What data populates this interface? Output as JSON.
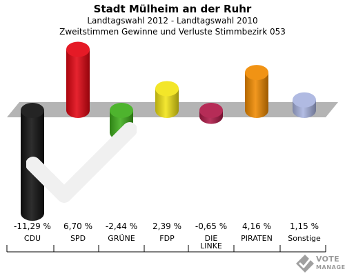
{
  "header": {
    "title": "Stadt Mülheim an der Ruhr",
    "subtitle": "Landtagswahl 2012 - Landtagswahl 2010",
    "subtitle2": "Zweitstimmen Gewinne und Verluste Stimmbezirk 053"
  },
  "logo": {
    "line1": "VOTE",
    "line2": "MANAGER"
  },
  "chart_data": {
    "type": "bar",
    "title": "Stadt Mülheim an der Ruhr",
    "subtitle": "Landtagswahl 2012 - Landtagswahl 2010 / Zweitstimmen Gewinne und Verluste Stimmbezirk 053",
    "categories": [
      "CDU",
      "SPD",
      "GRÜNE",
      "FDP",
      "DIE LINKE",
      "PIRATEN",
      "Sonstige"
    ],
    "category_labels": [
      [
        "CDU"
      ],
      [
        "SPD"
      ],
      [
        "GRÜNE"
      ],
      [
        "FDP"
      ],
      [
        "DIE",
        "LINKE"
      ],
      [
        "PIRATEN"
      ],
      [
        "Sonstige"
      ]
    ],
    "values": [
      -11.29,
      6.7,
      -2.44,
      2.39,
      -0.65,
      4.16,
      1.15
    ],
    "value_labels": [
      "-11,29 %",
      "6,70 %",
      "-2,44 %",
      "2,39 %",
      "-0,65 %",
      "4,16 %",
      "1,15 %"
    ],
    "colors": [
      "#111111",
      "#e30613",
      "#3fae1c",
      "#f2e416",
      "#b01a48",
      "#f08a00",
      "#a9b4e0"
    ],
    "ylim": [
      -11.29,
      6.7
    ],
    "grid": false,
    "legend": "none"
  }
}
